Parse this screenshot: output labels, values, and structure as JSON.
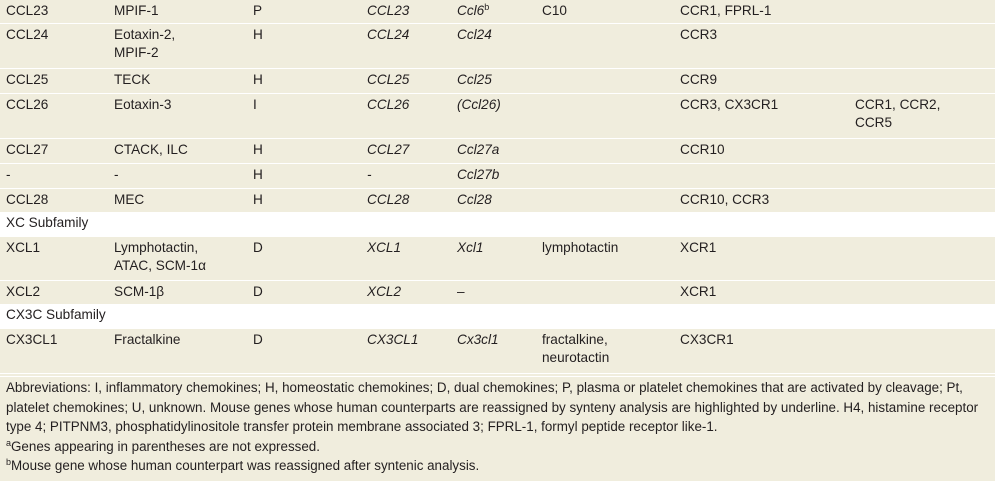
{
  "rows": [
    {
      "c0": "CCL23",
      "c1a": "MPIF-1",
      "c1b": "",
      "c2": "P",
      "c3": "CCL23",
      "c4": "Ccl6",
      "c4sup": "b",
      "c5a": "C10",
      "c5b": "",
      "c6": "CCR1, FPRL-1",
      "c7a": "",
      "c7b": ""
    },
    {
      "c0": "CCL24",
      "c1a": "Eotaxin-2,",
      "c1b": "MPIF-2",
      "c2": "H",
      "c3": "CCL24",
      "c4": "Ccl24",
      "c4sup": "",
      "c5a": "",
      "c5b": "",
      "c6": "CCR3",
      "c7a": "",
      "c7b": ""
    },
    {
      "c0": "CCL25",
      "c1a": "TECK",
      "c1b": "",
      "c2": "H",
      "c3": "CCL25",
      "c4": "Ccl25",
      "c4sup": "",
      "c5a": "",
      "c5b": "",
      "c6": "CCR9",
      "c7a": "",
      "c7b": ""
    },
    {
      "c0": "CCL26",
      "c1a": "Eotaxin-3",
      "c1b": "",
      "c2": "I",
      "c3": "CCL26",
      "c4": "(Ccl26)",
      "c4sup": "",
      "c5a": "",
      "c5b": "",
      "c6": "CCR3, CX3CR1",
      "c7a": "CCR1, CCR2,",
      "c7b": "CCR5"
    },
    {
      "c0": "CCL27",
      "c1a": "CTACK, ILC",
      "c1b": "",
      "c2": "H",
      "c3": "CCL27",
      "c4": "Ccl27a",
      "c4sup": "",
      "c5a": "",
      "c5b": "",
      "c6": "CCR10",
      "c7a": "",
      "c7b": ""
    },
    {
      "c0": "-",
      "c1a": "-",
      "c1b": "",
      "c2": "H",
      "c3": "-",
      "c4": "Ccl27b",
      "c4sup": "",
      "c5a": "",
      "c5b": "",
      "c6": "",
      "c7a": "",
      "c7b": ""
    },
    {
      "c0": "CCL28",
      "c1a": "MEC",
      "c1b": "",
      "c2": "H",
      "c3": "CCL28",
      "c4": "Ccl28",
      "c4sup": "",
      "c5a": "",
      "c5b": "",
      "c6": "CCR10, CCR3",
      "c7a": "",
      "c7b": ""
    },
    {
      "c0": "XC Subfamily"
    },
    {
      "c0": "XCL1",
      "c1a": "Lymphotactin,",
      "c1b": "ATAC, SCM-1α",
      "c2": "D",
      "c3": "XCL1",
      "c4": "Xcl1",
      "c4sup": "",
      "c5a": "lymphotactin",
      "c5b": "",
      "c6": "XCR1",
      "c7a": "",
      "c7b": ""
    },
    {
      "c0": "XCL2",
      "c1a": "SCM-1β",
      "c1b": "",
      "c2": "D",
      "c3": "XCL2",
      "c4": "–",
      "c4sup": "",
      "c5a": "",
      "c5b": "",
      "c6": "XCR1",
      "c7a": "",
      "c7b": ""
    },
    {
      "c0": "CX3C Subfamily"
    },
    {
      "c0": "CX3CL1",
      "c1a": "Fractalkine",
      "c1b": "",
      "c2": "D",
      "c3": "CX3CL1",
      "c4": "Cx3cl1",
      "c4sup": "",
      "c5a": "fractalkine,",
      "c5b": "neurotactin",
      "c6": "CX3CR1",
      "c7a": "",
      "c7b": ""
    }
  ],
  "footnotes": {
    "abbreviations": "Abbreviations: I, inflammatory chemokines; H, homeostatic chemokines; D, dual chemokines; P, plasma or platelet chemokines that are activated by cleavage; Pt, platelet chemokines; U, unknown. Mouse genes whose human counterparts are reassigned by synteny analysis are highlighted by underline. H4, histamine receptor type 4; PITPNM3, phosphatidylinositole transfer protein membrane associated 3; FPRL-1, formyl peptide receptor like-1.",
    "a_mark": "a",
    "a_text": "Genes appearing in parentheses are not expressed.",
    "b_mark": "b",
    "b_text": "Mouse gene whose human counterpart was reassigned after syntenic analysis."
  }
}
